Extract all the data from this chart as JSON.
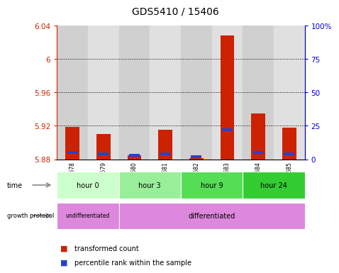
{
  "title": "GDS5410 / 15406",
  "samples": [
    "GSM1322678",
    "GSM1322679",
    "GSM1322680",
    "GSM1322681",
    "GSM1322682",
    "GSM1322683",
    "GSM1322684",
    "GSM1322685"
  ],
  "transformed_count": [
    5.919,
    5.91,
    5.885,
    5.915,
    5.881,
    6.028,
    5.935,
    5.918
  ],
  "percentile_rank": [
    5,
    4,
    3,
    4,
    2,
    22,
    5,
    4
  ],
  "baseline": 5.88,
  "ylim_left": [
    5.88,
    6.04
  ],
  "ylim_right": [
    0,
    100
  ],
  "yticks_left": [
    5.88,
    5.92,
    5.96,
    6.0,
    6.04
  ],
  "ytick_labels_left": [
    "5.88",
    "5.92",
    "5.96",
    "6",
    "6.04"
  ],
  "yticks_right": [
    0,
    25,
    50,
    75,
    100
  ],
  "ytick_labels_right": [
    "0",
    "25",
    "50",
    "75",
    "100%"
  ],
  "grid_yticks": [
    5.92,
    5.96,
    6.0
  ],
  "time_groups": [
    {
      "label": "hour 0",
      "start": 0,
      "end": 2,
      "color": "#ccffcc"
    },
    {
      "label": "hour 3",
      "start": 2,
      "end": 4,
      "color": "#99ee99"
    },
    {
      "label": "hour 9",
      "start": 4,
      "end": 6,
      "color": "#55dd55"
    },
    {
      "label": "hour 24",
      "start": 6,
      "end": 8,
      "color": "#33cc33"
    }
  ],
  "growth_groups": [
    {
      "label": "undifferentiated",
      "start": 0,
      "end": 2
    },
    {
      "label": "differentiated",
      "start": 2,
      "end": 8
    }
  ],
  "growth_color": "#dd88dd",
  "bar_color": "#cc2200",
  "percentile_color": "#2244cc",
  "background_color": "#ffffff",
  "left_axis_color": "#cc2200",
  "right_axis_color": "#0000cc",
  "col_colors": [
    "#d0d0d0",
    "#e0e0e0",
    "#d0d0d0",
    "#e0e0e0",
    "#d0d0d0",
    "#e0e0e0",
    "#d0d0d0",
    "#e0e0e0"
  ]
}
